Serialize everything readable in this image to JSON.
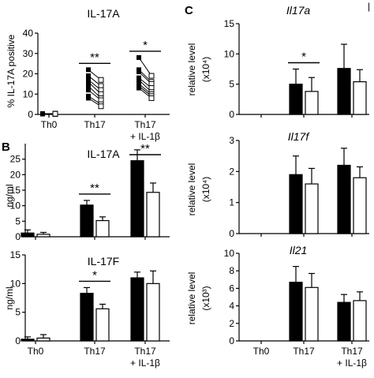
{
  "figure": {
    "panel_letters": [
      "B",
      "C"
    ],
    "corner_mark": "|"
  },
  "chart_data": [
    {
      "id": "A-il17a-paired",
      "type": "scatter",
      "title": "IL-17A",
      "ylabel": "% IL-17A positive",
      "categories": [
        "Th0",
        "Th17",
        "Th17\n+ IL-1β"
      ],
      "ylim": [
        0,
        40
      ],
      "yticks": [
        0,
        10,
        20,
        30,
        40
      ],
      "series": [
        {
          "marker": "filled",
          "values": [
            [
              0.3,
              0.2,
              0.4,
              0.3,
              0.2,
              0.3,
              0.2,
              0.3
            ],
            [
              22,
              19,
              17,
              16,
              14,
              12,
              9,
              8
            ],
            [
              28,
              22,
              21,
              18,
              17,
              15,
              14,
              13
            ]
          ]
        },
        {
          "marker": "open",
          "values": [
            [
              0.3,
              0.2,
              0.4,
              0.3,
              0.2,
              0.3,
              0.2,
              0.3
            ],
            [
              17,
              14,
              12,
              10,
              8,
              7,
              5,
              4
            ],
            [
              19,
              16,
              15,
              13,
              11,
              10,
              9,
              8
            ]
          ]
        }
      ],
      "significance": [
        {
          "cat": 1,
          "label": "**"
        },
        {
          "cat": 2,
          "label": "*"
        }
      ]
    },
    {
      "id": "B-il17a-ngml",
      "type": "bar",
      "title": "IL-17A",
      "ylabel": "ng/ml",
      "categories": [
        "Th0",
        "Th17",
        "Th17\n+ IL-1β"
      ],
      "ylim": [
        0,
        30
      ],
      "yticks": [
        0,
        5,
        10,
        15,
        20,
        25
      ],
      "series": [
        {
          "fill": "filled",
          "values": [
            1.2,
            10.2,
            24.5
          ],
          "errors": [
            1.0,
            1.5,
            3.5
          ]
        },
        {
          "fill": "open",
          "values": [
            0.8,
            5.2,
            14.3
          ],
          "errors": [
            0.6,
            1.2,
            3.0
          ]
        }
      ],
      "significance": [
        {
          "cat": 1,
          "label": "**"
        },
        {
          "cat": 2,
          "label": "**"
        }
      ]
    },
    {
      "id": "B-il17f-ngml",
      "type": "bar",
      "title": "IL-17F",
      "ylabel": "ng/ml",
      "categories": [
        "Th0",
        "Th17",
        "Th17\n+ IL-1β"
      ],
      "ylim": [
        0,
        15
      ],
      "yticks": [
        0,
        5,
        10,
        15
      ],
      "series": [
        {
          "fill": "filled",
          "values": [
            0.3,
            8.3,
            11.0
          ],
          "errors": [
            0.4,
            1.0,
            1.0
          ]
        },
        {
          "fill": "open",
          "values": [
            0.5,
            5.6,
            10.0
          ],
          "errors": [
            0.6,
            0.8,
            2.2
          ]
        }
      ],
      "significance": [
        {
          "cat": 1,
          "label": "*"
        }
      ]
    },
    {
      "id": "C-il17a",
      "type": "bar",
      "title": "Il17a",
      "title_italic": true,
      "ylabel": "relative level",
      "ylabel2": "(x10⁴)",
      "categories": [
        "Th0",
        "Th17",
        "Th17\n+ IL-1β"
      ],
      "ylim": [
        0,
        15
      ],
      "yticks": [
        0,
        5,
        10,
        15
      ],
      "series": [
        {
          "fill": "filled",
          "values": [
            0,
            5.0,
            7.6
          ],
          "errors": [
            0,
            2.5,
            4.0
          ]
        },
        {
          "fill": "open",
          "values": [
            0,
            3.8,
            5.4
          ],
          "errors": [
            0,
            2.3,
            2.0
          ]
        }
      ],
      "significance": [
        {
          "cat": 1,
          "label": "*"
        }
      ]
    },
    {
      "id": "C-il17f",
      "type": "bar",
      "title": "Il17f",
      "title_italic": true,
      "ylabel": "relative level",
      "ylabel2": "(x10⁴)",
      "categories": [
        "Th0",
        "Th17",
        "Th17\n+ IL-1β"
      ],
      "ylim": [
        0,
        3
      ],
      "yticks": [
        0,
        1,
        2,
        3
      ],
      "series": [
        {
          "fill": "filled",
          "values": [
            0,
            1.9,
            2.2
          ],
          "errors": [
            0,
            0.6,
            0.55
          ]
        },
        {
          "fill": "open",
          "values": [
            0,
            1.6,
            1.8
          ],
          "errors": [
            0,
            0.5,
            0.35
          ]
        }
      ],
      "significance": []
    },
    {
      "id": "C-il21",
      "type": "bar",
      "title": "Il21",
      "title_italic": true,
      "ylabel": "relative level",
      "ylabel2": "(x10³)",
      "categories": [
        "Th0",
        "Th17",
        "Th17\n+ IL-1β"
      ],
      "ylim": [
        0,
        10
      ],
      "yticks": [
        0,
        2,
        4,
        6,
        8,
        10
      ],
      "series": [
        {
          "fill": "filled",
          "values": [
            0,
            6.7,
            4.4
          ],
          "errors": [
            0,
            1.8,
            0.9
          ]
        },
        {
          "fill": "open",
          "values": [
            0,
            6.1,
            4.6
          ],
          "errors": [
            0,
            1.6,
            1.0
          ]
        }
      ],
      "significance": []
    }
  ]
}
